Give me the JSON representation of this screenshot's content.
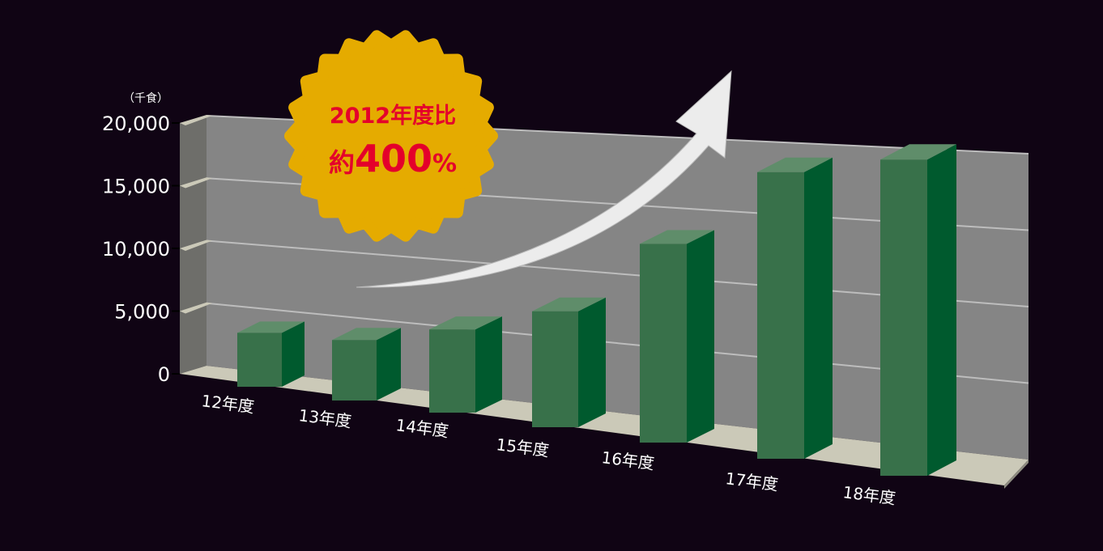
{
  "chart_data": {
    "type": "bar",
    "style": "3d",
    "unit_label": "（千食）",
    "categories": [
      "12年度",
      "13年度",
      "14年度",
      "15年度",
      "16年度",
      "17年度",
      "18年度"
    ],
    "values": [
      4300,
      4500,
      5800,
      7600,
      12300,
      16800,
      17600
    ],
    "yticks": [
      "0",
      "5,000",
      "10,000",
      "15,000",
      "20,000"
    ],
    "ylim": [
      0,
      20000
    ],
    "grid": true,
    "colors": {
      "bar_front": "#38714a",
      "bar_side": "#005a2e",
      "bar_top": "#5f8d6a",
      "wall": "#858585",
      "floor": "#cbc9b8",
      "background": "#100414",
      "badge": "#e5ab00",
      "badge_text": "#e4002b"
    },
    "annotation": {
      "line1": "2012年度比",
      "line2_prefix": "約",
      "line2_value": "400",
      "line2_suffix": "%"
    }
  }
}
